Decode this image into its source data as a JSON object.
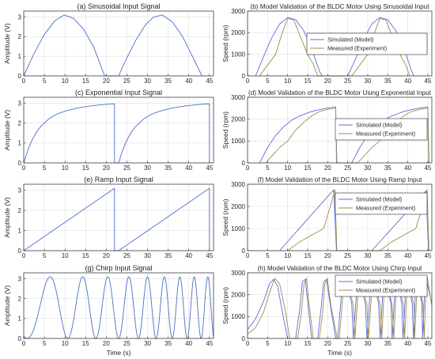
{
  "chart_data": [
    {
      "type": "line",
      "title": "(a) Sinusoidal Input Signal",
      "xlabel": "",
      "ylabel": "Amplitude (V)",
      "xlim": [
        0,
        46
      ],
      "ylim": [
        0,
        3.3
      ],
      "xticks": [
        0,
        5,
        10,
        15,
        20,
        25,
        30,
        35,
        40,
        45
      ],
      "yticks": [
        0,
        1,
        2,
        3
      ],
      "grid": true,
      "series": [
        {
          "name": "",
          "color": "#4a6fc9",
          "x": [
            0,
            2.5,
            5,
            7.5,
            9.8,
            12,
            14.5,
            17,
            19.6,
            19.6,
            23,
            24.5,
            27,
            29.5,
            31.5,
            33.6,
            36,
            38.5,
            41,
            43.2
          ],
          "y": [
            0,
            1.14,
            2.11,
            2.8,
            3.1,
            2.94,
            2.38,
            1.45,
            0,
            0,
            0,
            0.7,
            1.76,
            2.6,
            3.0,
            3.1,
            2.75,
            2.0,
            0.95,
            0
          ]
        }
      ]
    },
    {
      "type": "line",
      "title": "(b) Model Validation of the BLDC Motor Using Sinusoidal Input",
      "xlabel": "",
      "ylabel": "Speed (rpm)",
      "xlim": [
        0,
        46
      ],
      "ylim": [
        0,
        3000
      ],
      "xticks": [
        0,
        5,
        10,
        15,
        20,
        25,
        30,
        35,
        40,
        45
      ],
      "yticks": [
        0,
        1000,
        2000,
        3000
      ],
      "grid": true,
      "legend": "right",
      "series": [
        {
          "name": "Simulated (Model)",
          "color": "#5b6fd6",
          "x": [
            2,
            4,
            6,
            8,
            10,
            12,
            14,
            16,
            18,
            18.6,
            25,
            27,
            29,
            31,
            33,
            35,
            37,
            39,
            41,
            41.5
          ],
          "y": [
            0,
            900,
            1750,
            2400,
            2700,
            2600,
            2100,
            1250,
            200,
            0,
            0,
            800,
            1700,
            2400,
            2700,
            2600,
            2100,
            1300,
            200,
            0
          ]
        },
        {
          "name": "Measured (Experiment)",
          "color": "#a08a4e",
          "x": [
            3,
            5,
            7,
            8.5,
            10,
            11.5,
            13,
            15,
            16.5,
            17.5,
            26,
            28,
            30,
            31.5,
            33,
            34.5,
            36,
            38,
            39.5,
            40.5
          ],
          "y": [
            0,
            500,
            1000,
            1900,
            2650,
            2600,
            1900,
            1000,
            500,
            0,
            0,
            500,
            1000,
            1900,
            2650,
            2600,
            1900,
            1000,
            500,
            0
          ]
        }
      ]
    },
    {
      "type": "line",
      "title": "(c) Exponential Input Signal",
      "xlabel": "",
      "ylabel": "Amplitude (V)",
      "xlim": [
        0,
        46
      ],
      "ylim": [
        0,
        3.3
      ],
      "xticks": [
        0,
        5,
        10,
        15,
        20,
        25,
        30,
        35,
        40,
        45
      ],
      "yticks": [
        0,
        1,
        2,
        3
      ],
      "grid": true,
      "series": [
        {
          "name": "",
          "color": "#4a6fc9",
          "x": [
            0,
            1,
            2,
            3,
            4,
            6,
            8,
            10,
            13,
            16,
            19,
            22,
            22,
            23,
            24,
            25,
            26,
            27,
            29,
            31,
            33,
            36,
            39,
            42,
            45,
            45
          ],
          "y": [
            0,
            0.65,
            1.14,
            1.52,
            1.8,
            2.2,
            2.45,
            2.6,
            2.76,
            2.86,
            2.93,
            2.97,
            0,
            0,
            0.65,
            1.14,
            1.52,
            1.8,
            2.2,
            2.45,
            2.6,
            2.76,
            2.86,
            2.93,
            2.97,
            0
          ]
        }
      ]
    },
    {
      "type": "line",
      "title": "(d) Model Validation of the BLDC Motor Using Exponential Input",
      "xlabel": "",
      "ylabel": "Speed (rpm)",
      "xlim": [
        0,
        46
      ],
      "ylim": [
        0,
        3000
      ],
      "xticks": [
        0,
        5,
        10,
        15,
        20,
        25,
        30,
        35,
        40,
        45
      ],
      "yticks": [
        0,
        1000,
        2000,
        3000
      ],
      "grid": true,
      "legend": "right",
      "series": [
        {
          "name": "Simulated (Model)",
          "color": "#5b6fd6",
          "x": [
            3,
            5,
            7,
            9,
            11,
            13,
            16,
            19,
            22,
            22.3,
            26,
            28,
            30,
            32,
            34,
            36,
            39,
            42,
            45,
            45.3
          ],
          "y": [
            0,
            700,
            1250,
            1650,
            1950,
            2150,
            2350,
            2480,
            2560,
            0,
            0,
            700,
            1250,
            1650,
            1950,
            2150,
            2350,
            2480,
            2560,
            0
          ]
        },
        {
          "name": "Measured (Experiment)",
          "color": "#a08a4e",
          "x": [
            4.5,
            6,
            8,
            10,
            12,
            14,
            16,
            18,
            20,
            22,
            22.2,
            27.5,
            29,
            31,
            33,
            35,
            37,
            39,
            41,
            43,
            45,
            45.2
          ],
          "y": [
            0,
            300,
            700,
            1000,
            1500,
            1850,
            2150,
            2350,
            2450,
            2500,
            0,
            0,
            300,
            700,
            1000,
            1500,
            1850,
            2150,
            2350,
            2450,
            2500,
            0
          ]
        }
      ]
    },
    {
      "type": "line",
      "title": "(e) Ramp Input Signal",
      "xlabel": "",
      "ylabel": "Amplitude (V)",
      "xlim": [
        0,
        46
      ],
      "ylim": [
        0,
        3.3
      ],
      "xticks": [
        0,
        5,
        10,
        15,
        20,
        25,
        30,
        35,
        40,
        45
      ],
      "yticks": [
        0,
        1,
        2,
        3
      ],
      "grid": true,
      "series": [
        {
          "name": "",
          "color": "#4a6fc9",
          "x": [
            0,
            22,
            22,
            23,
            45,
            45
          ],
          "y": [
            0,
            3.1,
            0,
            0,
            3.1,
            0
          ]
        }
      ]
    },
    {
      "type": "line",
      "title": "(f) Model Validation of the BLDC Motor Using Ramp Input",
      "xlabel": "",
      "ylabel": "Speed (rpm)",
      "xlim": [
        0,
        46
      ],
      "ylim": [
        0,
        3000
      ],
      "xticks": [
        0,
        5,
        10,
        15,
        20,
        25,
        30,
        35,
        40,
        45
      ],
      "yticks": [
        0,
        1000,
        2000,
        3000
      ],
      "grid": true,
      "legend": "right",
      "series": [
        {
          "name": "Simulated (Model)",
          "color": "#5b6fd6",
          "x": [
            8,
            21.5,
            22.2,
            31,
            44.5,
            45.2
          ],
          "y": [
            0,
            2750,
            0,
            0,
            2700,
            0
          ]
        },
        {
          "name": "Measured (Experiment)",
          "color": "#a08a4e",
          "x": [
            10,
            13,
            16,
            19,
            21,
            21.8,
            22.3,
            33,
            36,
            39,
            42,
            44,
            44.8,
            45.3
          ],
          "y": [
            0,
            400,
            700,
            1000,
            2200,
            2750,
            0,
            0,
            400,
            700,
            1000,
            2200,
            2750,
            0
          ]
        }
      ]
    },
    {
      "type": "line",
      "title": "(g) Chirp Input Signal",
      "xlabel": "Time (s)",
      "ylabel": "Amplitude (V)",
      "xlim": [
        0,
        46
      ],
      "ylim": [
        0,
        3.3
      ],
      "xticks": [
        0,
        5,
        10,
        15,
        20,
        25,
        30,
        35,
        40,
        45
      ],
      "yticks": [
        0,
        1,
        2,
        3
      ],
      "grid": true,
      "chirp": {
        "x0": 0,
        "x1": 46,
        "offset": 1.55,
        "amplitude": 1.55,
        "initial_value": 1.5,
        "first_peak": 6.4,
        "first_trough": 10.5,
        "second_peak": 14.3
      },
      "series": [
        {
          "name": "",
          "color": "#4a6fc9"
        }
      ]
    },
    {
      "type": "line",
      "title": "(h) Model Validation of the BLDC Motor Using Chirp Input",
      "xlabel": "Time (s)",
      "ylabel": "Speed (rpm)",
      "xlim": [
        0,
        46
      ],
      "ylim": [
        0,
        3000
      ],
      "xticks": [
        0,
        5,
        10,
        15,
        20,
        25,
        30,
        35,
        40,
        45
      ],
      "yticks": [
        0,
        1000,
        2000,
        3000
      ],
      "grid": true,
      "legend": "top-right",
      "series": [
        {
          "name": "Simulated (Model)",
          "color": "#5b6fd6",
          "x": [
            0,
            2,
            4,
            5.5,
            6.5,
            7.5,
            9,
            10,
            12,
            13,
            13.7,
            14.4,
            15,
            16,
            17.5,
            18.3,
            19,
            19.7,
            20.5,
            22,
            22.5,
            23.1,
            23.7,
            24.5,
            26,
            26.4,
            26.9,
            27.4,
            28,
            29.4,
            29.8,
            30.3,
            30.8,
            31.4,
            32.7,
            33.1,
            33.5,
            33.9,
            34.4,
            35.8,
            36.1,
            36.5,
            36.9,
            37.3,
            38.5,
            38.8,
            39.2,
            39.5,
            39.9,
            41.1,
            41.4,
            41.7,
            42,
            42.4,
            43.5,
            43.7,
            44,
            44.3,
            44.6,
            46
          ],
          "y": [
            400,
            900,
            1700,
            2500,
            2700,
            2400,
            900,
            0,
            0,
            1300,
            2600,
            2700,
            1700,
            0,
            0,
            1300,
            2600,
            2700,
            1700,
            0,
            0,
            1300,
            2600,
            2700,
            1600,
            0,
            1300,
            2600,
            2700,
            1600,
            0,
            1300,
            2600,
            2700,
            1600,
            0,
            1300,
            2600,
            2700,
            1600,
            0,
            1300,
            2600,
            2700,
            1600,
            0,
            1300,
            2600,
            2700,
            1600,
            0,
            1300,
            2600,
            2700,
            1600,
            0,
            1300,
            2600,
            2700,
            1600
          ]
        },
        {
          "name": "Measured (Experiment)",
          "color": "#a08a4e",
          "x": [
            0,
            2,
            4,
            5.5,
            6.8,
            8,
            9.5,
            10.5,
            12.5,
            13.4,
            14.1,
            14.7,
            15.4,
            16.4,
            17.9,
            18.7,
            19.3,
            19.9,
            20.8,
            22.4,
            22.9,
            23.4,
            24,
            24.8,
            26.4,
            26.8,
            27.2,
            27.7,
            28.3,
            29.8,
            30.2,
            30.6,
            31.1,
            31.7,
            33.1,
            33.5,
            33.8,
            34.2,
            34.7,
            36.1,
            36.5,
            36.8,
            37.2,
            37.6,
            38.9,
            39.2,
            39.5,
            39.8,
            40.2,
            41.5,
            41.7,
            42,
            42.3,
            42.7,
            43.8,
            44.1,
            44.3,
            44.6,
            44.9,
            46
          ],
          "y": [
            200,
            500,
            1200,
            2100,
            2750,
            2500,
            1200,
            0,
            0,
            1100,
            2500,
            2750,
            1500,
            0,
            0,
            1100,
            2500,
            2750,
            1500,
            0,
            0,
            1100,
            2500,
            2750,
            1500,
            0,
            1100,
            2500,
            2750,
            1500,
            0,
            1100,
            2500,
            2750,
            1500,
            0,
            1100,
            2500,
            2750,
            1500,
            0,
            1100,
            2500,
            2750,
            1500,
            0,
            1100,
            2500,
            2750,
            1500,
            0,
            1100,
            2500,
            2750,
            1500,
            0,
            1100,
            2500,
            2750,
            1500
          ]
        }
      ]
    }
  ]
}
